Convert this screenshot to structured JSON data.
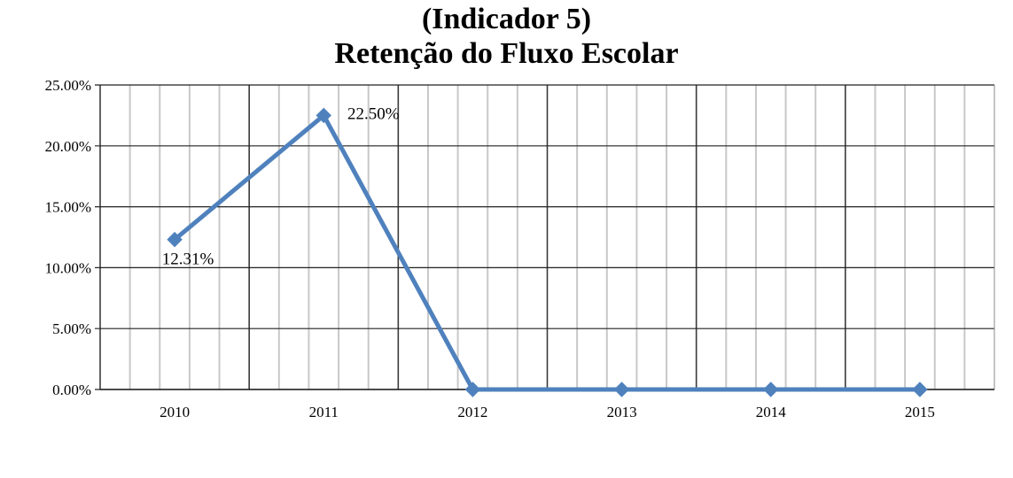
{
  "chart_data": {
    "type": "line",
    "title_line1": "(Indicador 5)",
    "title_line2": "Retenção do Fluxo Escolar",
    "categories": [
      "2010",
      "2011",
      "2012",
      "2013",
      "2014",
      "2015"
    ],
    "series": [
      {
        "values": [
          12.31,
          22.5,
          0,
          0,
          0,
          0
        ]
      }
    ],
    "data_labels": [
      "12.31%",
      "22.50%"
    ],
    "y_ticks": [
      "0.00%",
      "5.00%",
      "10.00%",
      "15.00%",
      "20.00%",
      "25.00%"
    ],
    "ylim": [
      0,
      25
    ],
    "xlabel": "",
    "ylabel": "",
    "grid": true,
    "line_color": "#4f81bd"
  }
}
